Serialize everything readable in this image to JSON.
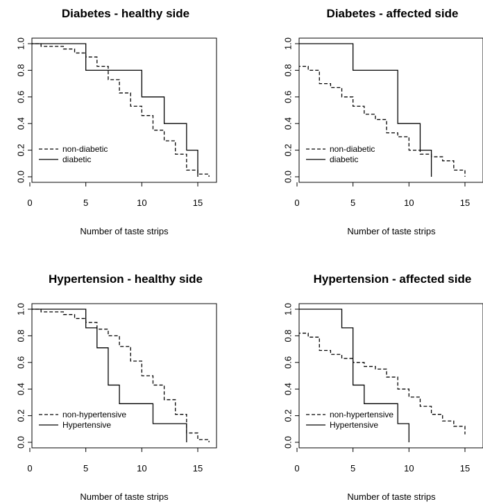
{
  "chart_data": [
    {
      "type": "line",
      "subtype": "step",
      "title": "Diabetes - healthy side",
      "xlabel": "Number of taste strips",
      "ylabel": "",
      "xlim": [
        0,
        16
      ],
      "ylim": [
        0,
        1
      ],
      "xticks": [
        "0",
        "5",
        "10",
        "15"
      ],
      "yticks": [
        "0.0",
        "0.2",
        "0.4",
        "0.6",
        "0.8",
        "1.0"
      ],
      "legend_position": "bottom-left",
      "series": [
        {
          "name": "non-diabetic",
          "style": "dashed",
          "x": [
            0,
            1,
            3,
            4,
            5,
            6,
            7,
            8,
            9,
            10,
            11,
            12,
            13,
            14,
            15,
            16
          ],
          "y": [
            1.0,
            0.98,
            0.96,
            0.93,
            0.9,
            0.83,
            0.73,
            0.63,
            0.53,
            0.46,
            0.35,
            0.27,
            0.17,
            0.05,
            0.02,
            0.0
          ]
        },
        {
          "name": "diabetic",
          "style": "solid",
          "x": [
            0,
            5,
            10,
            12,
            14,
            15
          ],
          "y": [
            1.0,
            0.8,
            0.6,
            0.4,
            0.2,
            0.0
          ]
        }
      ]
    },
    {
      "type": "line",
      "subtype": "step",
      "title": "Diabetes - affected side",
      "xlabel": "Number of taste strips",
      "ylabel": "",
      "xlim": [
        0,
        15.5
      ],
      "ylim": [
        0,
        1
      ],
      "xticks": [
        "0",
        "5",
        "10",
        "15"
      ],
      "yticks": [
        "0.0",
        "0.2",
        "0.4",
        "0.6",
        "0.8",
        "1.0"
      ],
      "legend_position": "bottom-left",
      "series": [
        {
          "name": "non-diabetic",
          "style": "dashed",
          "x": [
            0,
            1,
            2,
            3,
            4,
            5,
            6,
            7,
            8,
            9,
            10,
            11,
            12,
            13,
            14,
            15
          ],
          "y": [
            0.83,
            0.8,
            0.7,
            0.67,
            0.6,
            0.53,
            0.47,
            0.43,
            0.33,
            0.3,
            0.2,
            0.17,
            0.15,
            0.12,
            0.05,
            0.0
          ]
        },
        {
          "name": "diabetic",
          "style": "solid",
          "x": [
            0,
            5,
            9,
            11,
            12
          ],
          "y": [
            1.0,
            0.8,
            0.4,
            0.2,
            0.0
          ]
        }
      ]
    },
    {
      "type": "line",
      "subtype": "step",
      "title": "Hypertension - healthy side",
      "xlabel": "Number of taste strips",
      "ylabel": "",
      "xlim": [
        0,
        16
      ],
      "ylim": [
        0,
        1
      ],
      "xticks": [
        "0",
        "5",
        "10",
        "15"
      ],
      "yticks": [
        "0.0",
        "0.2",
        "0.4",
        "0.6",
        "0.8",
        "1.0"
      ],
      "legend_position": "bottom-left",
      "series": [
        {
          "name": "non-hypertensive",
          "style": "dashed",
          "x": [
            0,
            1,
            3,
            4,
            5,
            6,
            7,
            8,
            9,
            10,
            11,
            12,
            13,
            14,
            15,
            16
          ],
          "y": [
            1.0,
            0.98,
            0.96,
            0.93,
            0.9,
            0.85,
            0.8,
            0.72,
            0.61,
            0.5,
            0.43,
            0.32,
            0.21,
            0.07,
            0.02,
            0.0
          ]
        },
        {
          "name": "Hypertensive",
          "style": "solid",
          "x": [
            0,
            5,
            6,
            7,
            8,
            11,
            14
          ],
          "y": [
            1.0,
            0.86,
            0.71,
            0.43,
            0.29,
            0.14,
            0.0
          ]
        }
      ]
    },
    {
      "type": "line",
      "subtype": "step",
      "title": "Hypertension - affected side",
      "xlabel": "Number of taste strips",
      "ylabel": "",
      "xlim": [
        0,
        15.5
      ],
      "ylim": [
        0,
        1
      ],
      "xticks": [
        "0",
        "5",
        "10",
        "15"
      ],
      "yticks": [
        "0.0",
        "0.2",
        "0.4",
        "0.6",
        "0.8",
        "1.0"
      ],
      "legend_position": "bottom-left",
      "series": [
        {
          "name": "non-hypertensive",
          "style": "dashed",
          "x": [
            0,
            1,
            2,
            3,
            4,
            5,
            6,
            7,
            8,
            9,
            10,
            11,
            12,
            13,
            14,
            15
          ],
          "y": [
            0.82,
            0.79,
            0.69,
            0.66,
            0.63,
            0.6,
            0.57,
            0.55,
            0.49,
            0.4,
            0.34,
            0.27,
            0.21,
            0.16,
            0.12,
            0.06
          ]
        },
        {
          "name": "Hypertensive",
          "style": "solid",
          "x": [
            0,
            4,
            5,
            6,
            9,
            10
          ],
          "y": [
            1.0,
            0.86,
            0.43,
            0.29,
            0.14,
            0.0
          ]
        }
      ]
    }
  ]
}
